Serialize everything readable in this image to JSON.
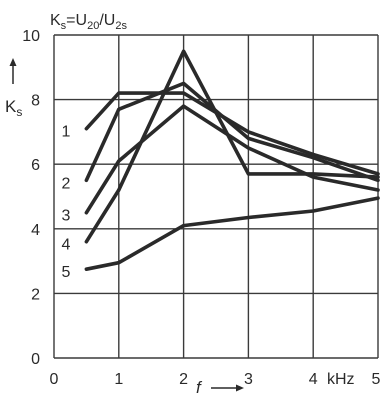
{
  "chart_data": {
    "type": "line",
    "title": "Ks=U20/U2s",
    "title_parts": {
      "k": "K",
      "ks": "s",
      "eq": "=U",
      "s1": "20",
      "sl": "/U",
      "s2": "2s"
    },
    "ylabel": {
      "main": "K",
      "sub": "s"
    },
    "xlabel": "f",
    "x_unit": "kHz",
    "xlim": [
      0,
      5
    ],
    "ylim": [
      0,
      10
    ],
    "x_ticks": [
      0,
      1,
      2,
      3,
      4,
      5
    ],
    "y_ticks": [
      0,
      2,
      4,
      6,
      8,
      10
    ],
    "grid": true,
    "series": [
      {
        "name": "1",
        "points": [
          [
            0.5,
            7.1
          ],
          [
            1,
            8.2
          ],
          [
            2,
            8.2
          ],
          [
            3,
            7.0
          ],
          [
            4,
            6.3
          ],
          [
            5,
            5.7
          ]
        ]
      },
      {
        "name": "2",
        "points": [
          [
            0.5,
            5.5
          ],
          [
            1,
            7.7
          ],
          [
            2,
            8.5
          ],
          [
            3,
            6.8
          ],
          [
            4,
            6.2
          ],
          [
            5,
            5.5
          ]
        ]
      },
      {
        "name": "3",
        "points": [
          [
            0.5,
            4.5
          ],
          [
            1,
            6.1
          ],
          [
            2,
            7.8
          ],
          [
            3,
            6.5
          ],
          [
            4,
            5.6
          ],
          [
            5,
            5.2
          ]
        ]
      },
      {
        "name": "4",
        "points": [
          [
            0.5,
            3.6
          ],
          [
            1,
            5.2
          ],
          [
            2,
            9.5
          ],
          [
            3,
            5.7
          ],
          [
            4,
            5.7
          ],
          [
            5,
            5.6
          ]
        ]
      },
      {
        "name": "5",
        "points": [
          [
            0.5,
            2.75
          ],
          [
            1,
            2.95
          ],
          [
            2,
            4.1
          ],
          [
            3,
            4.35
          ],
          [
            4,
            4.55
          ],
          [
            5,
            4.95
          ]
        ]
      }
    ],
    "color": "#2a2a2a",
    "grid_color": "#3a3a3a"
  }
}
